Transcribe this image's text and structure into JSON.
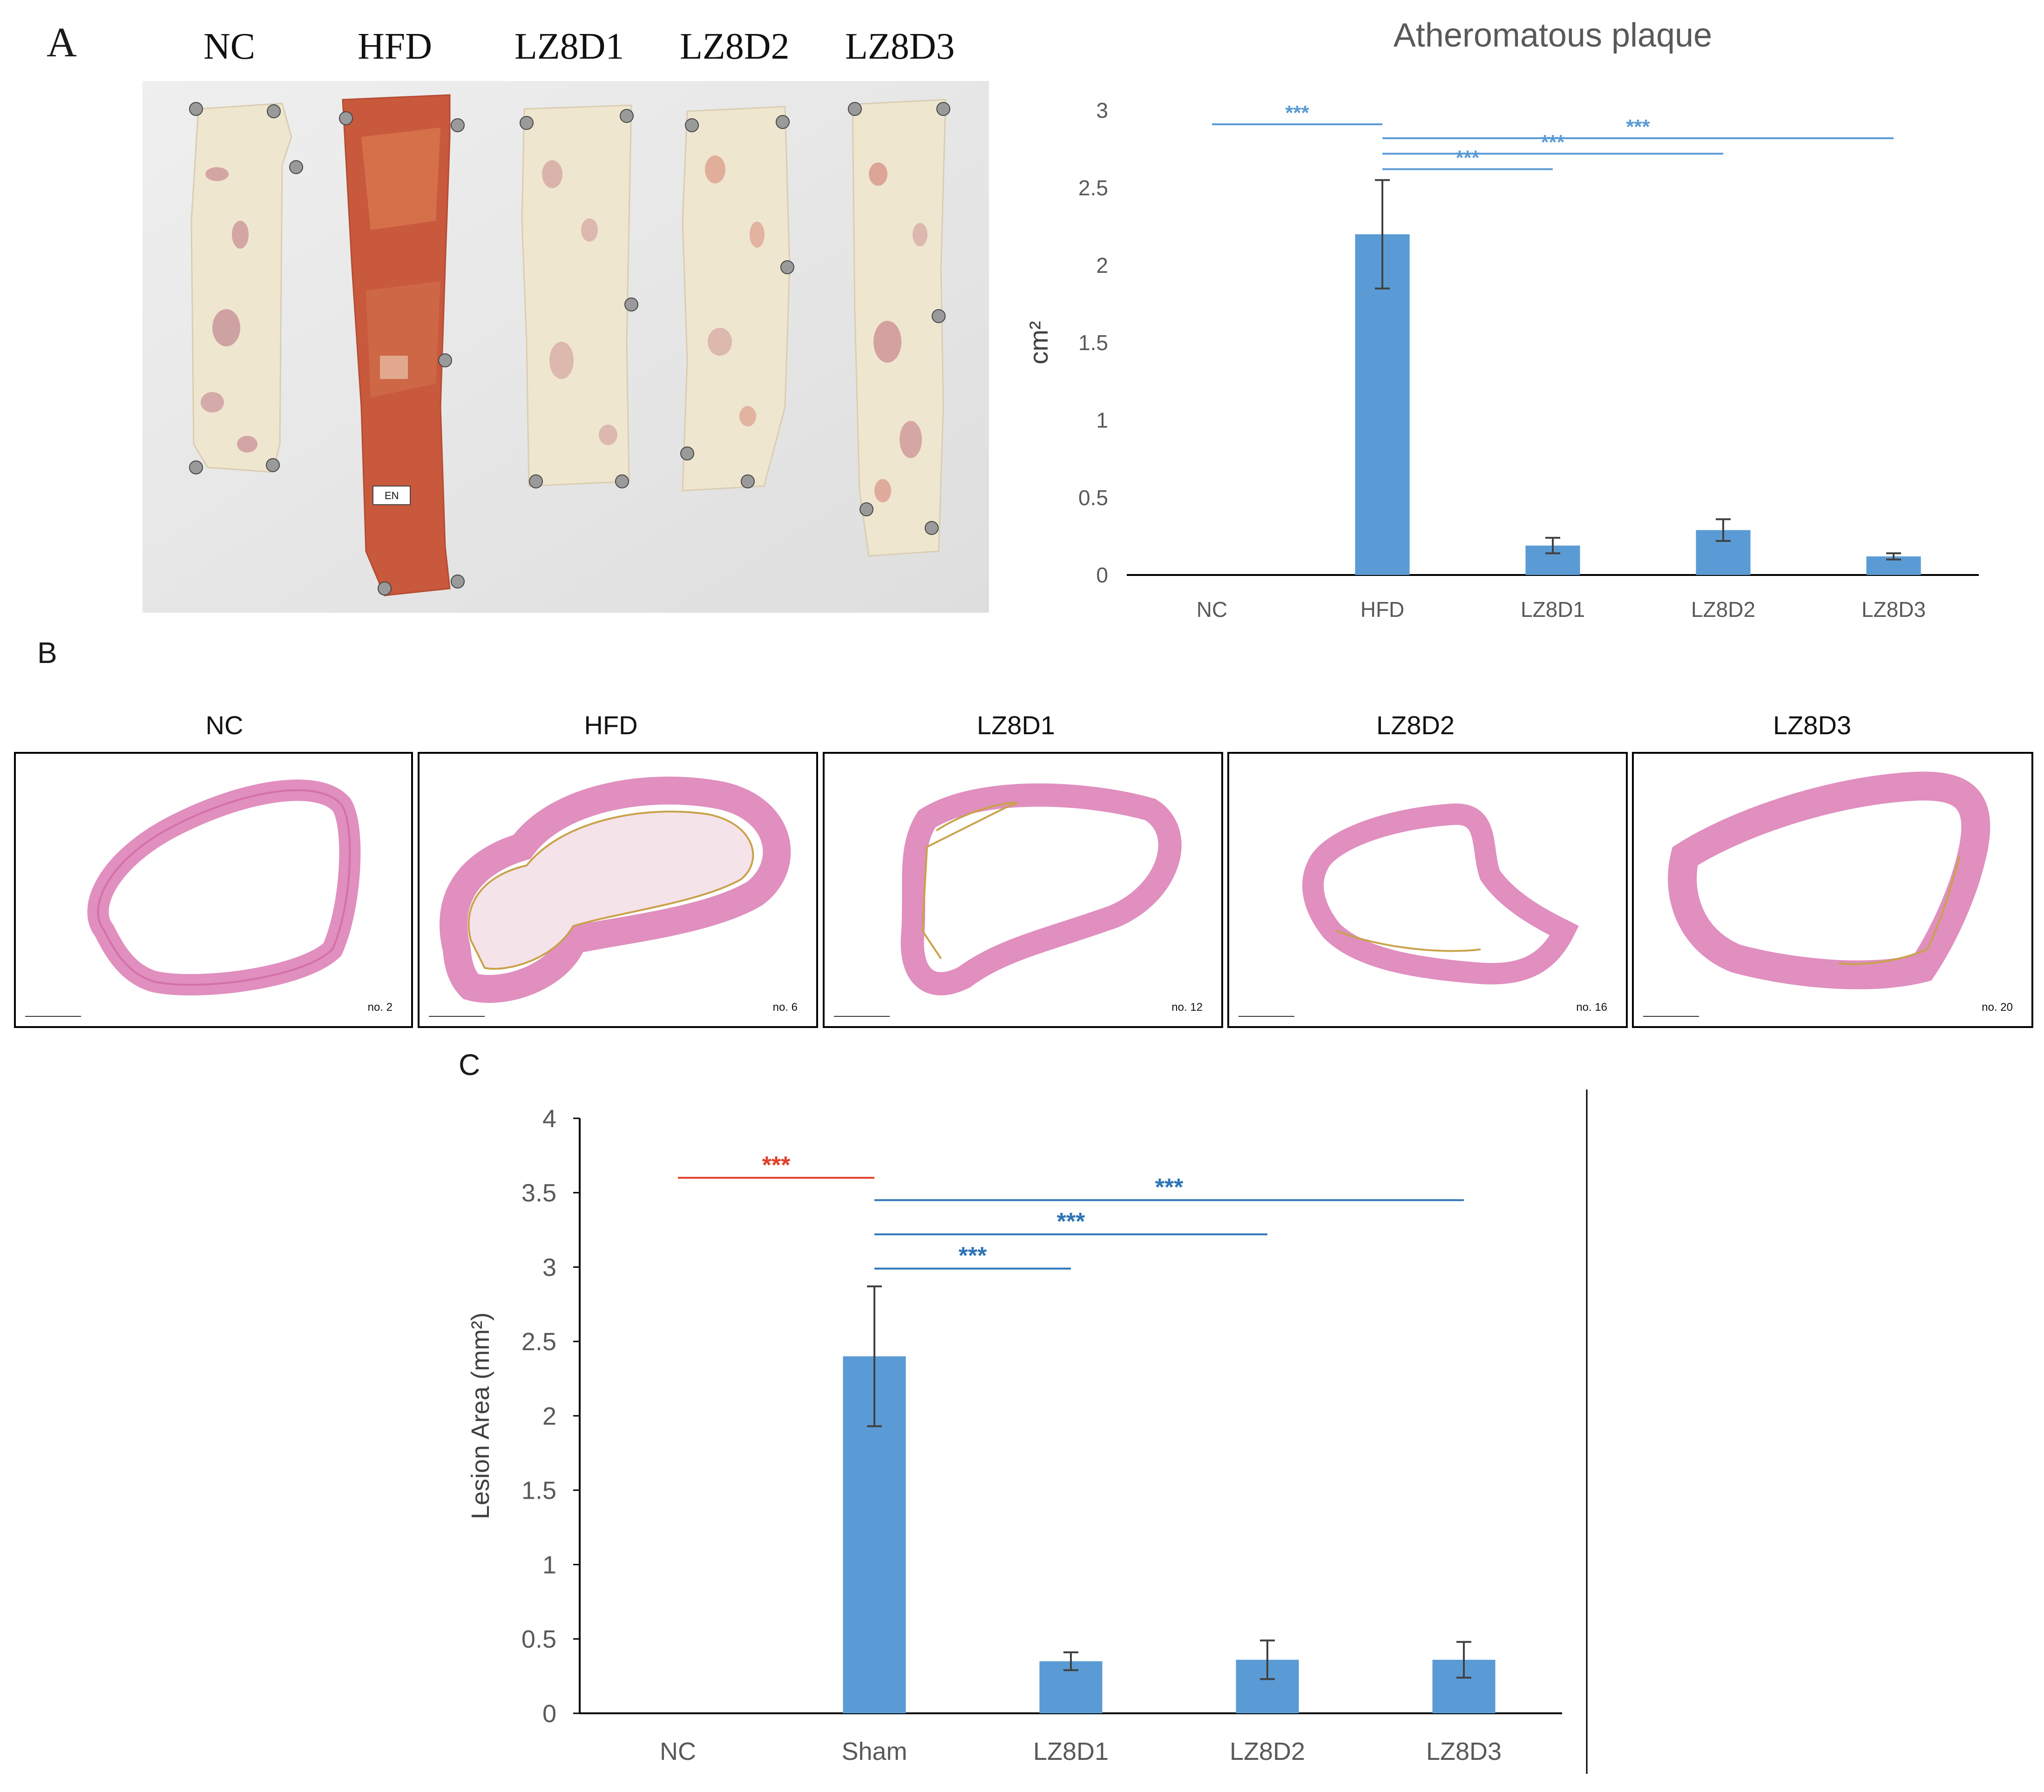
{
  "panels": {
    "a": {
      "letter": "A",
      "photo_labels": [
        "NC",
        "HFD",
        "LZ8D1",
        "LZ8D2",
        "LZ8D3"
      ],
      "photo_tag": "EN"
    },
    "b": {
      "letter": "B",
      "sections": [
        {
          "label": "NC",
          "number": "no. 2"
        },
        {
          "label": "HFD",
          "number": "no. 6"
        },
        {
          "label": "LZ8D1",
          "number": "no. 12"
        },
        {
          "label": "LZ8D2",
          "number": "no. 16"
        },
        {
          "label": "LZ8D3",
          "number": "no. 20"
        }
      ]
    },
    "c": {
      "letter": "C"
    }
  },
  "chart_data": [
    {
      "type": "bar",
      "title": "Atheromatous plaque",
      "ylabel": "cm²",
      "xlabel": "",
      "categories": [
        "NC",
        "HFD",
        "LZ8D1",
        "LZ8D2",
        "LZ8D3"
      ],
      "values": [
        0,
        2.2,
        0.19,
        0.29,
        0.12
      ],
      "errors": [
        0,
        0.35,
        0.05,
        0.07,
        0.02
      ],
      "ylim": [
        0,
        3
      ],
      "yticks": [
        0,
        0.5,
        1,
        1.5,
        2,
        2.5,
        3
      ],
      "bar_color": "#5b9bd5",
      "grid": false,
      "significance": [
        {
          "from": "NC",
          "to": "HFD",
          "label": "***",
          "y": 2.91,
          "color": "#5b9bd5"
        },
        {
          "from": "HFD",
          "to": "LZ8D3",
          "label": "***",
          "y": 2.82,
          "color": "#5b9bd5"
        },
        {
          "from": "HFD",
          "to": "LZ8D2",
          "label": "***",
          "y": 2.72,
          "color": "#5b9bd5"
        },
        {
          "from": "HFD",
          "to": "LZ8D1",
          "label": "***",
          "y": 2.62,
          "color": "#5b9bd5"
        }
      ]
    },
    {
      "type": "bar",
      "title": "",
      "ylabel": "Lesion Area (mm²)",
      "xlabel": "",
      "categories": [
        "NC",
        "Sham",
        "LZ8D1",
        "LZ8D2",
        "LZ8D3"
      ],
      "values": [
        0,
        2.4,
        0.35,
        0.36,
        0.36
      ],
      "errors": [
        0,
        0.47,
        0.06,
        0.13,
        0.12
      ],
      "ylim": [
        0,
        4
      ],
      "yticks": [
        0,
        0.5,
        1,
        1.5,
        2,
        2.5,
        3,
        3.5,
        4
      ],
      "bar_color": "#5b9bd5",
      "grid": false,
      "significance": [
        {
          "from": "NC",
          "to": "Sham",
          "label": "***",
          "y": 3.6,
          "color": "#e0402a"
        },
        {
          "from": "Sham",
          "to": "LZ8D3",
          "label": "***",
          "y": 3.45,
          "color": "#2e75b6"
        },
        {
          "from": "Sham",
          "to": "LZ8D2",
          "label": "***",
          "y": 3.22,
          "color": "#2e75b6"
        },
        {
          "from": "Sham",
          "to": "LZ8D1",
          "label": "***",
          "y": 2.99,
          "color": "#2e75b6"
        }
      ]
    }
  ]
}
